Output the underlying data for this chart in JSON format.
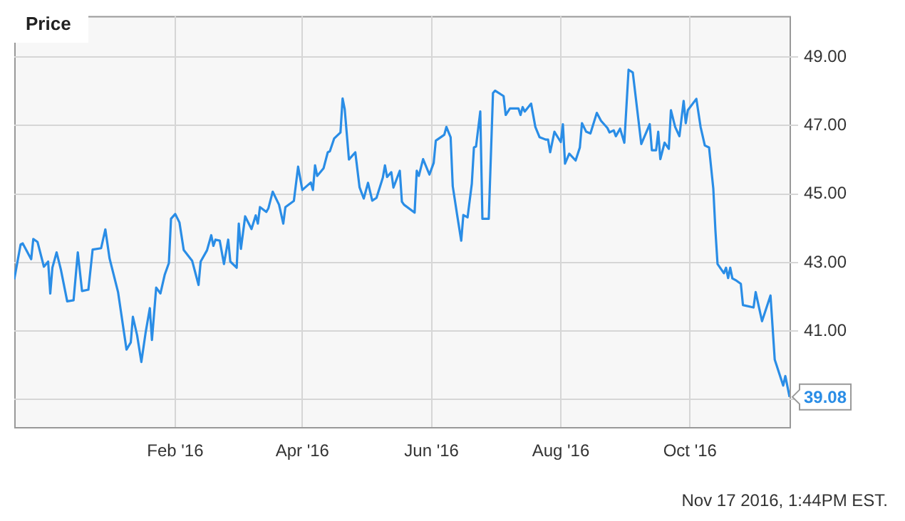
{
  "chart_data": {
    "type": "line",
    "title": "Price",
    "color": "#2a8de6",
    "marker": "none",
    "grid": true,
    "xlim": [
      "2015-11-17",
      "2016-11-17"
    ],
    "ylim": [
      38.2,
      50.2
    ],
    "xticks": [
      {
        "value": "2016-02-01",
        "label": "Feb '16"
      },
      {
        "value": "2016-04-01",
        "label": "Apr '16"
      },
      {
        "value": "2016-06-01",
        "label": "Jun '16"
      },
      {
        "value": "2016-08-01",
        "label": "Aug '16"
      },
      {
        "value": "2016-10-01",
        "label": "Oct '16"
      }
    ],
    "yticks": [
      {
        "value": 39,
        "label": null
      },
      {
        "value": 41,
        "label": "41.00"
      },
      {
        "value": 43,
        "label": "43.00"
      },
      {
        "value": 45,
        "label": "45.00"
      },
      {
        "value": 47,
        "label": "47.00"
      },
      {
        "value": 49,
        "label": "49.00"
      }
    ],
    "x": [
      "2015-11-17",
      "2015-11-20",
      "2015-11-21",
      "2015-11-25",
      "2015-11-26",
      "2015-11-28",
      "2015-12-01",
      "2015-12-03",
      "2015-12-04",
      "2015-12-05",
      "2015-12-07",
      "2015-12-09",
      "2015-12-12",
      "2015-12-15",
      "2015-12-17",
      "2015-12-19",
      "2015-12-22",
      "2015-12-24",
      "2015-12-28",
      "2015-12-30",
      "2016-01-01",
      "2016-01-05",
      "2016-01-09",
      "2016-01-11",
      "2016-01-12",
      "2016-01-14",
      "2016-01-16",
      "2016-01-18",
      "2016-01-20",
      "2016-01-21",
      "2016-01-23",
      "2016-01-25",
      "2016-01-27",
      "2016-01-29",
      "2016-01-30",
      "2016-02-01",
      "2016-02-03",
      "2016-02-05",
      "2016-02-09",
      "2016-02-12",
      "2016-02-13",
      "2016-02-16",
      "2016-02-18",
      "2016-02-19",
      "2016-02-20",
      "2016-02-22",
      "2016-02-24",
      "2016-02-26",
      "2016-02-27",
      "2016-03-01",
      "2016-03-02",
      "2016-03-03",
      "2016-03-05",
      "2016-03-08",
      "2016-03-10",
      "2016-03-11",
      "2016-03-12",
      "2016-03-15",
      "2016-03-16",
      "2016-03-18",
      "2016-03-21",
      "2016-03-23",
      "2016-03-24",
      "2016-03-28",
      "2016-03-30",
      "2016-04-01",
      "2016-04-05",
      "2016-04-06",
      "2016-04-07",
      "2016-04-08",
      "2016-04-11",
      "2016-04-13",
      "2016-04-14",
      "2016-04-16",
      "2016-04-19",
      "2016-04-20",
      "2016-04-21",
      "2016-04-23",
      "2016-04-26",
      "2016-04-28",
      "2016-04-30",
      "2016-05-02",
      "2016-05-04",
      "2016-05-06",
      "2016-05-09",
      "2016-05-10",
      "2016-05-11",
      "2016-05-13",
      "2016-05-14",
      "2016-05-17",
      "2016-05-18",
      "2016-05-19",
      "2016-05-24",
      "2016-05-25",
      "2016-05-26",
      "2016-05-28",
      "2016-05-31",
      "2016-06-02",
      "2016-06-03",
      "2016-06-07",
      "2016-06-08",
      "2016-06-10",
      "2016-06-11",
      "2016-06-13",
      "2016-06-15",
      "2016-06-16",
      "2016-06-18",
      "2016-06-20",
      "2016-06-21",
      "2016-06-22",
      "2016-06-24",
      "2016-06-25",
      "2016-06-28",
      "2016-06-30",
      "2016-07-01",
      "2016-07-05",
      "2016-07-06",
      "2016-07-08",
      "2016-07-12",
      "2016-07-13",
      "2016-07-14",
      "2016-07-15",
      "2016-07-18",
      "2016-07-20",
      "2016-07-22",
      "2016-07-25",
      "2016-07-26",
      "2016-07-27",
      "2016-07-29",
      "2016-07-31",
      "2016-08-01",
      "2016-08-02",
      "2016-08-03",
      "2016-08-05",
      "2016-08-08",
      "2016-08-10",
      "2016-08-11",
      "2016-08-13",
      "2016-08-15",
      "2016-08-18",
      "2016-08-20",
      "2016-08-23",
      "2016-08-24",
      "2016-08-26",
      "2016-08-27",
      "2016-08-29",
      "2016-08-31",
      "2016-09-02",
      "2016-09-04",
      "2016-09-08",
      "2016-09-12",
      "2016-09-13",
      "2016-09-15",
      "2016-09-16",
      "2016-09-17",
      "2016-09-19",
      "2016-09-21",
      "2016-09-22",
      "2016-09-24",
      "2016-09-26",
      "2016-09-28",
      "2016-09-29",
      "2016-09-30",
      "2016-10-04",
      "2016-10-06",
      "2016-10-08",
      "2016-10-10",
      "2016-10-12",
      "2016-10-13",
      "2016-10-14",
      "2016-10-17",
      "2016-10-18",
      "2016-10-19",
      "2016-10-20",
      "2016-10-21",
      "2016-10-23",
      "2016-10-25",
      "2016-10-26",
      "2016-10-31",
      "2016-11-01",
      "2016-11-04",
      "2016-11-08",
      "2016-11-10",
      "2016-11-14",
      "2016-11-15",
      "2016-11-17"
    ],
    "values": [
      42.51,
      43.53,
      43.56,
      43.1,
      43.69,
      43.6,
      42.88,
      43.03,
      42.1,
      42.85,
      43.3,
      42.8,
      41.87,
      41.9,
      43.3,
      42.17,
      42.21,
      43.38,
      43.42,
      43.97,
      43.12,
      42.14,
      40.46,
      40.67,
      41.42,
      40.88,
      40.1,
      40.95,
      41.67,
      40.74,
      42.27,
      42.1,
      42.64,
      42.99,
      44.28,
      44.42,
      44.17,
      43.37,
      43.05,
      42.35,
      43.03,
      43.36,
      43.8,
      43.49,
      43.67,
      43.64,
      42.96,
      43.67,
      43.03,
      42.85,
      44.14,
      43.4,
      44.35,
      43.98,
      44.38,
      44.14,
      44.62,
      44.48,
      44.59,
      45.07,
      44.69,
      44.14,
      44.62,
      44.8,
      45.8,
      45.12,
      45.34,
      45.12,
      45.84,
      45.53,
      45.75,
      46.22,
      46.25,
      46.62,
      46.8,
      47.79,
      47.48,
      46.01,
      46.22,
      45.2,
      44.87,
      45.33,
      44.81,
      44.89,
      45.48,
      45.84,
      45.5,
      45.64,
      45.19,
      45.68,
      44.78,
      44.69,
      44.46,
      45.68,
      45.53,
      46.02,
      45.57,
      45.91,
      46.56,
      46.73,
      46.96,
      46.66,
      45.23,
      44.42,
      43.64,
      44.39,
      44.32,
      45.3,
      46.36,
      46.39,
      47.41,
      44.28,
      44.28,
      47.95,
      48.02,
      47.86,
      47.31,
      47.5,
      47.5,
      47.31,
      47.54,
      47.41,
      47.64,
      46.96,
      46.66,
      46.59,
      46.59,
      46.22,
      46.82,
      46.62,
      46.52,
      47.04,
      45.89,
      46.18,
      45.98,
      46.36,
      47.07,
      46.82,
      46.77,
      47.37,
      47.14,
      46.93,
      46.8,
      46.86,
      46.69,
      46.91,
      46.5,
      48.63,
      48.55,
      46.46,
      47.04,
      46.28,
      46.28,
      46.82,
      46.02,
      46.5,
      46.32,
      47.45,
      46.96,
      46.69,
      47.72,
      47.07,
      47.45,
      47.78,
      46.96,
      46.42,
      46.36,
      45.16,
      43.94,
      42.96,
      42.69,
      42.85,
      42.55,
      42.85,
      42.54,
      42.47,
      42.38,
      41.76,
      41.69,
      42.14,
      41.29,
      42.04,
      40.17,
      39.41,
      39.69,
      39.08
    ],
    "value_labels": [
      null,
      null,
      null,
      null,
      null,
      null,
      null,
      null,
      null,
      null,
      null,
      null,
      null,
      null,
      null,
      null,
      null,
      null,
      null,
      null,
      null,
      null,
      null,
      null,
      null,
      null,
      null,
      null,
      null,
      null,
      null,
      null,
      null,
      null,
      null,
      null,
      null,
      null,
      null,
      null,
      null,
      null,
      null,
      null,
      null,
      null,
      null,
      null,
      null,
      null,
      null,
      null,
      null,
      null,
      null,
      null,
      null,
      null,
      null,
      null,
      null,
      null,
      null,
      null,
      null,
      null,
      null,
      null,
      null,
      null,
      null,
      null,
      null,
      null,
      null,
      null,
      null,
      null,
      null,
      null,
      null,
      null,
      null,
      null,
      null,
      null,
      null,
      null,
      null,
      null,
      null,
      null,
      null,
      null,
      null,
      null,
      null,
      null,
      null,
      null,
      null,
      null,
      null,
      null,
      null,
      null,
      null,
      null,
      null,
      null,
      null,
      null,
      null,
      null,
      null,
      null,
      null,
      null,
      null,
      null,
      null,
      null,
      null,
      null,
      null,
      null,
      null,
      null,
      null,
      null,
      null,
      null,
      null,
      null,
      null,
      null,
      null,
      null,
      null,
      null,
      null,
      null,
      null,
      null,
      null,
      null,
      null,
      null,
      null,
      null,
      null,
      null,
      null,
      null,
      null,
      null,
      null,
      null,
      null,
      null,
      null,
      null,
      null,
      null,
      null,
      null,
      null,
      null,
      null,
      null,
      null,
      null,
      null,
      null,
      null,
      null,
      null,
      null,
      null,
      null,
      null,
      null,
      null,
      null,
      null,
      "39.08"
    ],
    "annotations": [
      "Nov 17 2016, 1:44PM EST."
    ]
  }
}
